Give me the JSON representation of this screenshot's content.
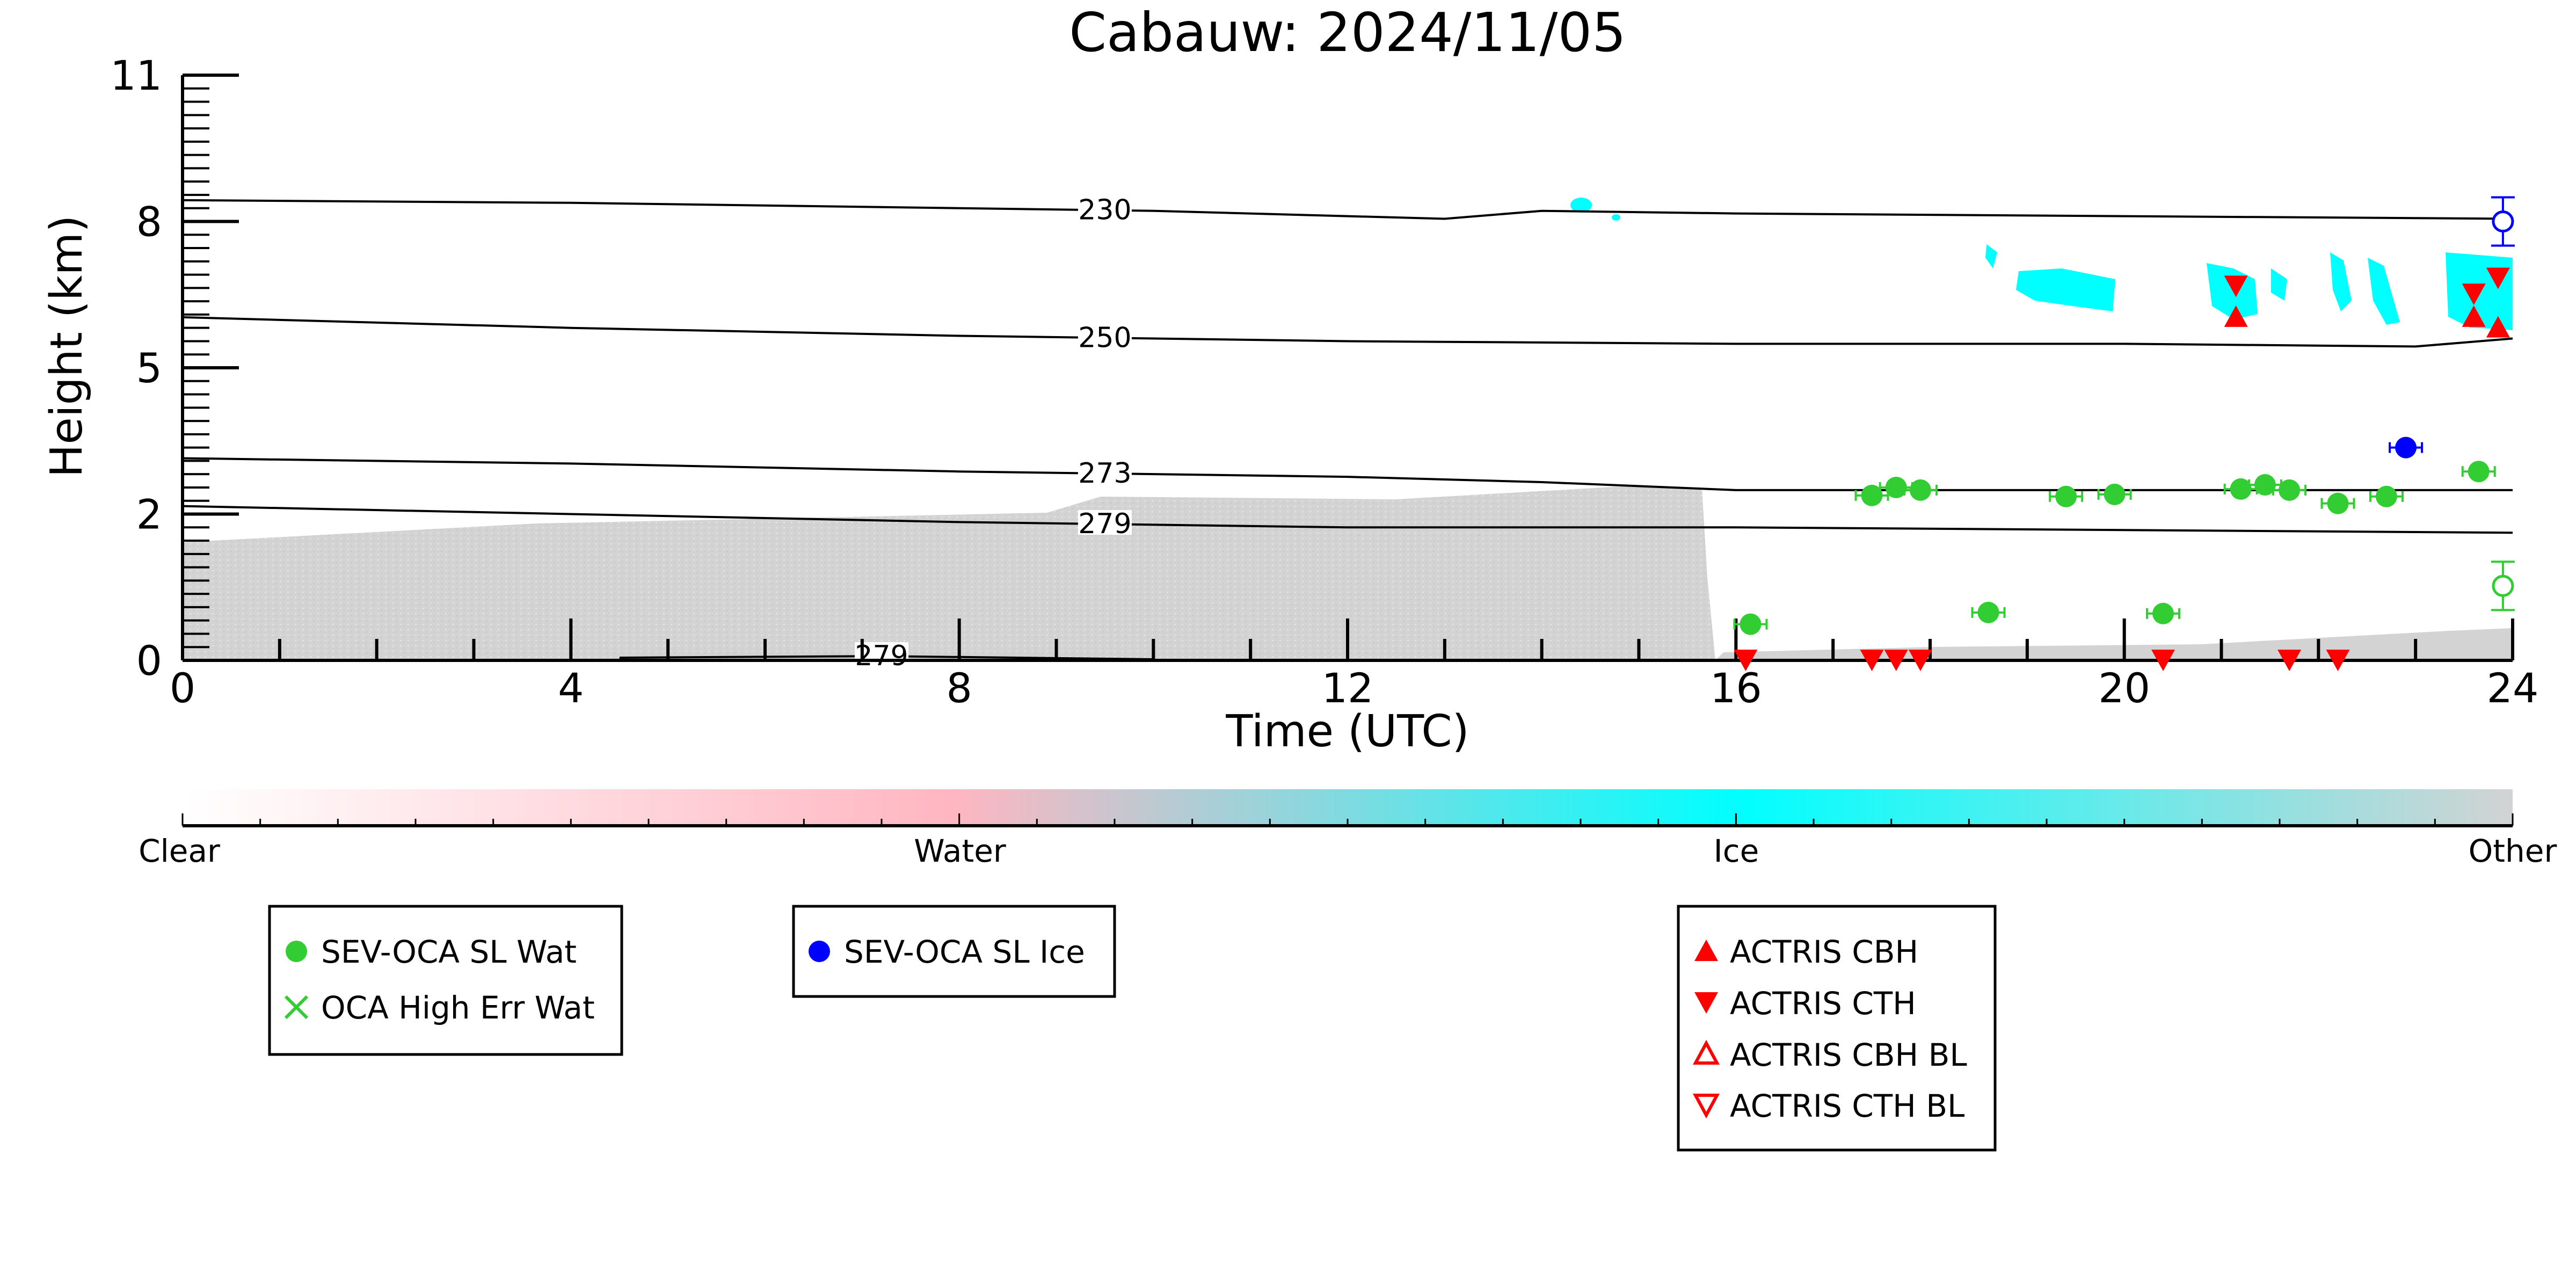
{
  "chart_data": {
    "type": "scatter",
    "title": "Cabauw: 2024/11/05",
    "xlabel": "Time (UTC)",
    "ylabel": "Height (km)",
    "xlim": [
      0,
      24
    ],
    "ylim": [
      0,
      11
    ],
    "xticks": [
      "0",
      "4",
      "8",
      "12",
      "16",
      "20",
      "24"
    ],
    "yticks": [
      "0",
      "2",
      "5",
      "8",
      "11"
    ],
    "ytick_values": [
      0,
      2.75,
      5.5,
      8.25,
      11
    ],
    "colorbar": {
      "labels": [
        "Clear",
        "Water",
        "Ice",
        "Other"
      ],
      "colors": [
        "#ffffff",
        "#ffb6c1",
        "#00ffff",
        "#d3d3d3"
      ]
    },
    "contours": [
      {
        "label": "230",
        "points": [
          [
            0,
            8.65
          ],
          [
            4,
            8.6
          ],
          [
            8,
            8.5
          ],
          [
            10,
            8.45
          ],
          [
            12,
            8.35
          ],
          [
            13,
            8.3
          ],
          [
            14,
            8.45
          ],
          [
            16,
            8.4
          ],
          [
            20,
            8.35
          ],
          [
            24,
            8.3
          ]
        ]
      },
      {
        "label": "250",
        "points": [
          [
            0,
            6.45
          ],
          [
            4,
            6.25
          ],
          [
            8,
            6.1
          ],
          [
            12,
            6.0
          ],
          [
            16,
            5.95
          ],
          [
            20,
            5.95
          ],
          [
            23,
            5.9
          ],
          [
            24,
            6.05
          ]
        ]
      },
      {
        "label": "273",
        "points": [
          [
            0,
            3.8
          ],
          [
            4,
            3.7
          ],
          [
            8,
            3.55
          ],
          [
            12,
            3.45
          ],
          [
            14,
            3.35
          ],
          [
            16,
            3.2
          ],
          [
            20,
            3.2
          ],
          [
            24,
            3.2
          ]
        ]
      },
      {
        "label": "279",
        "points": [
          [
            0,
            2.9
          ],
          [
            4,
            2.75
          ],
          [
            8,
            2.6
          ],
          [
            12,
            2.5
          ],
          [
            16,
            2.5
          ],
          [
            20,
            2.45
          ],
          [
            24,
            2.4
          ]
        ]
      },
      {
        "label": "279",
        "points": [
          [
            4.5,
            0.05
          ],
          [
            7.2,
            0.08
          ],
          [
            10,
            0.02
          ]
        ]
      }
    ],
    "series": [
      {
        "name": "SEV-OCA SL Wat",
        "marker": "filled-circle",
        "color": "#32cd32",
        "points": [
          [
            16.15,
            0.68
          ],
          [
            17.4,
            3.1
          ],
          [
            17.65,
            3.25
          ],
          [
            17.9,
            3.2
          ],
          [
            18.6,
            0.9
          ],
          [
            19.4,
            3.08
          ],
          [
            19.9,
            3.12
          ],
          [
            20.4,
            0.88
          ],
          [
            21.2,
            3.22
          ],
          [
            21.45,
            3.3
          ],
          [
            21.7,
            3.2
          ],
          [
            22.2,
            2.95
          ],
          [
            22.7,
            3.08
          ],
          [
            23.65,
            3.55
          ]
        ]
      },
      {
        "name": "OCA High Err Wat",
        "marker": "x",
        "color": "#32cd32",
        "points": []
      },
      {
        "name": "SEV-OCA SL Ice",
        "marker": "filled-circle",
        "color": "#0000ff",
        "points": [
          [
            22.9,
            4.0
          ]
        ]
      },
      {
        "name": "ACTRIS CBH",
        "marker": "triangle-up",
        "color": "#ff0000",
        "points": [
          [
            21.15,
            6.45
          ],
          [
            23.6,
            6.45
          ],
          [
            23.85,
            6.25
          ]
        ]
      },
      {
        "name": "ACTRIS CTH",
        "marker": "triangle-down",
        "color": "#ff0000",
        "points": [
          [
            16.1,
            0.02
          ],
          [
            17.4,
            0.02
          ],
          [
            17.65,
            0.02
          ],
          [
            17.9,
            0.02
          ],
          [
            20.4,
            0.02
          ],
          [
            21.15,
            7.05
          ],
          [
            21.7,
            0.02
          ],
          [
            22.2,
            0.02
          ],
          [
            23.6,
            6.9
          ],
          [
            23.85,
            7.2
          ]
        ]
      },
      {
        "name": "ACTRIS CBH BL",
        "marker": "open-triangle-up",
        "color": "#ff0000",
        "points": []
      },
      {
        "name": "ACTRIS CTH BL",
        "marker": "open-triangle-down",
        "color": "#ff0000",
        "points": []
      }
    ],
    "extra_markers": [
      {
        "type": "open-circle",
        "color": "#0000ff",
        "x": 23.9,
        "y": 8.25
      },
      {
        "type": "open-circle",
        "color": "#32cd32",
        "x": 23.9,
        "y": 1.4
      }
    ],
    "legends": [
      {
        "entries": [
          "SEV-OCA SL Wat",
          "OCA High Err Wat"
        ]
      },
      {
        "entries": [
          "SEV-OCA SL Ice"
        ]
      },
      {
        "entries": [
          "ACTRIS CBH",
          "ACTRIS CTH",
          "ACTRIS CBH BL",
          "ACTRIS CTH BL"
        ]
      }
    ]
  }
}
